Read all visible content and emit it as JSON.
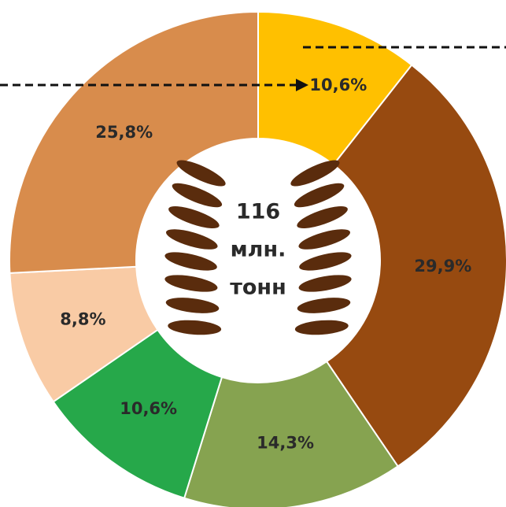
{
  "chart_data": {
    "type": "donut",
    "values": [
      10.6,
      29.9,
      14.3,
      10.6,
      8.8,
      25.8
    ],
    "value_labels": [
      "10,6%",
      "29,9%",
      "14,3%",
      "10,6%",
      "8,8%",
      "25,8%"
    ],
    "colors": [
      "#ffc000",
      "#974a10",
      "#86a350",
      "#26a84a",
      "#f9cba5",
      "#d88c4c"
    ],
    "center_text": [
      "116",
      "млн.",
      "тонн"
    ]
  }
}
